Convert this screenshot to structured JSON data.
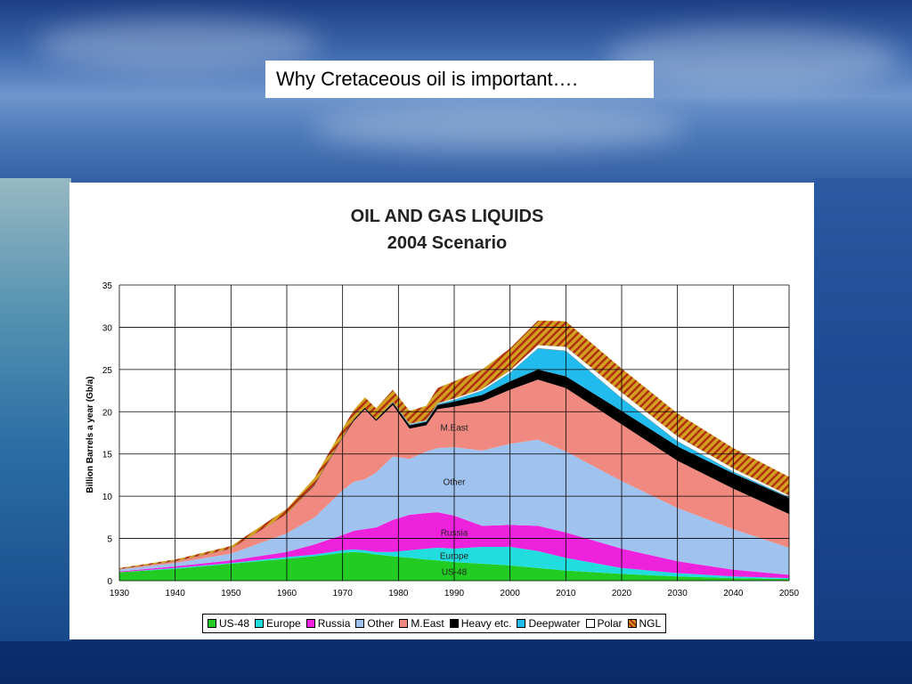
{
  "slide": {
    "title": "Why Cretaceous oil is important…."
  },
  "chart_data": {
    "type": "area",
    "title": "OIL AND GAS LIQUIDS",
    "subtitle": "2004 Scenario",
    "ylabel": "Billion Barrels a year (Gb/a)",
    "xlabel": "",
    "xlim": [
      1930,
      2050
    ],
    "ylim": [
      0,
      35
    ],
    "xticks": [
      1930,
      1940,
      1950,
      1960,
      1970,
      1980,
      1990,
      2000,
      2010,
      2020,
      2030,
      2040,
      2050
    ],
    "yticks": [
      0,
      5,
      10,
      15,
      20,
      25,
      30,
      35
    ],
    "grid": true,
    "legend_position": "bottom",
    "x": [
      1930,
      1940,
      1950,
      1960,
      1965,
      1970,
      1972,
      1974,
      1976,
      1979,
      1982,
      1985,
      1987,
      1990,
      1995,
      2000,
      2005,
      2010,
      2020,
      2030,
      2040,
      2050
    ],
    "series": [
      {
        "name": "US-48",
        "color": "#22cc22",
        "values": [
          1.0,
          1.4,
          2.0,
          2.6,
          2.9,
          3.3,
          3.4,
          3.3,
          3.1,
          2.9,
          2.7,
          2.5,
          2.4,
          2.2,
          2.0,
          1.8,
          1.5,
          1.2,
          0.8,
          0.5,
          0.3,
          0.2
        ]
      },
      {
        "name": "Europe",
        "color": "#22dddd",
        "values": [
          0.0,
          0.1,
          0.1,
          0.2,
          0.2,
          0.3,
          0.3,
          0.3,
          0.3,
          0.5,
          0.9,
          1.3,
          1.5,
          1.6,
          2.0,
          2.2,
          2.0,
          1.5,
          0.7,
          0.4,
          0.2,
          0.1
        ]
      },
      {
        "name": "Russia",
        "color": "#ee22dd",
        "values": [
          0.1,
          0.2,
          0.3,
          0.6,
          1.2,
          1.8,
          2.2,
          2.5,
          2.9,
          3.8,
          4.2,
          4.2,
          4.2,
          3.9,
          2.5,
          2.6,
          3.0,
          3.0,
          2.3,
          1.4,
          0.8,
          0.4
        ]
      },
      {
        "name": "Other",
        "color": "#9fc2ee",
        "values": [
          0.2,
          0.4,
          0.8,
          2.2,
          3.2,
          5.3,
          5.8,
          5.9,
          6.5,
          7.5,
          6.6,
          7.3,
          7.6,
          8.1,
          8.9,
          9.6,
          10.2,
          9.6,
          8.0,
          6.3,
          4.8,
          3.2
        ]
      },
      {
        "name": "M.East",
        "color": "#f08a80",
        "values": [
          0.1,
          0.2,
          0.6,
          2.3,
          3.8,
          6.2,
          7.2,
          8.3,
          6.1,
          6.1,
          3.6,
          3.1,
          4.6,
          4.8,
          5.8,
          6.4,
          7.1,
          7.5,
          6.7,
          5.6,
          4.8,
          4.0
        ]
      },
      {
        "name": "Heavy etc.",
        "color": "#000000",
        "values": [
          0.0,
          0.0,
          0.0,
          0.0,
          0.1,
          0.1,
          0.2,
          0.2,
          0.2,
          0.3,
          0.4,
          0.4,
          0.5,
          0.6,
          0.8,
          1.0,
          1.2,
          1.4,
          1.6,
          1.7,
          1.8,
          1.9
        ]
      },
      {
        "name": "Deepwater",
        "color": "#22bbee",
        "values": [
          0.0,
          0.0,
          0.0,
          0.0,
          0.0,
          0.0,
          0.0,
          0.0,
          0.0,
          0.0,
          0.1,
          0.1,
          0.1,
          0.2,
          0.5,
          1.0,
          2.5,
          3.0,
          1.5,
          0.6,
          0.2,
          0.1
        ]
      },
      {
        "name": "Polar",
        "color": "#ffffff",
        "values": [
          0.0,
          0.0,
          0.0,
          0.0,
          0.0,
          0.0,
          0.0,
          0.0,
          0.0,
          0.1,
          0.1,
          0.1,
          0.1,
          0.2,
          0.2,
          0.3,
          0.4,
          0.5,
          0.7,
          0.6,
          0.4,
          0.2
        ]
      },
      {
        "name": "NGL",
        "color": "#d4a020",
        "values": [
          0.1,
          0.2,
          0.3,
          0.6,
          0.8,
          1.0,
          1.1,
          1.2,
          1.3,
          1.4,
          1.5,
          1.7,
          1.8,
          2.0,
          2.3,
          2.6,
          2.9,
          3.0,
          2.8,
          2.7,
          2.4,
          2.2
        ]
      }
    ],
    "annotations": [
      {
        "text": "M.East",
        "series": "M.East",
        "x": 1990
      },
      {
        "text": "Other",
        "series": "Other",
        "x": 1990
      },
      {
        "text": "Russia",
        "series": "Russia",
        "x": 1990
      },
      {
        "text": "Europe",
        "series": "Europe",
        "x": 1990
      },
      {
        "text": "US-48",
        "series": "US-48",
        "x": 1990
      }
    ]
  }
}
